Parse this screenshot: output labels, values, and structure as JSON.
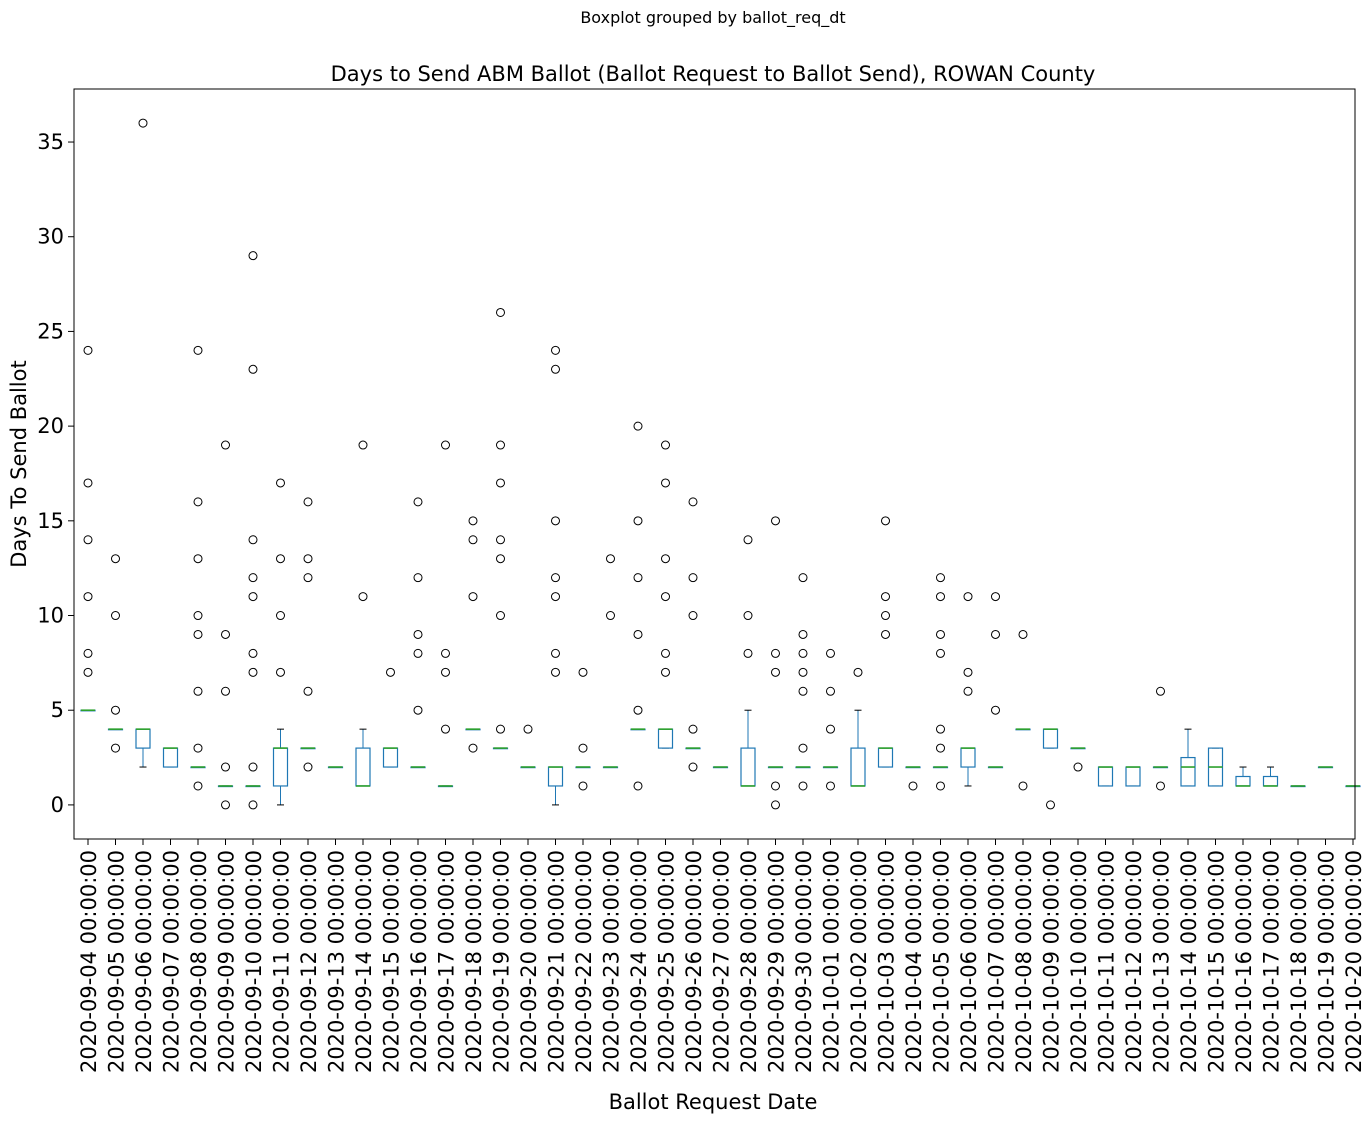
{
  "chart_data": {
    "type": "boxplot",
    "suptitle": "Boxplot grouped by ballot_req_dt",
    "title": "Days to Send ABM Ballot (Ballot Request to Ballot Send), ROWAN County",
    "xlabel": "Ballot Request Date",
    "ylabel": "Days To Send Ballot",
    "ylim": [
      -1.8,
      37.8
    ],
    "yticks": [
      0,
      5,
      10,
      15,
      20,
      25,
      30,
      35
    ],
    "grid": false,
    "colors": {
      "box": "#1f77b4",
      "median": "#2ca02c",
      "flier": "#000000",
      "axes": "#000000"
    },
    "categories": [
      "2020-09-04 00:00:00",
      "2020-09-05 00:00:00",
      "2020-09-06 00:00:00",
      "2020-09-07 00:00:00",
      "2020-09-08 00:00:00",
      "2020-09-09 00:00:00",
      "2020-09-10 00:00:00",
      "2020-09-11 00:00:00",
      "2020-09-12 00:00:00",
      "2020-09-13 00:00:00",
      "2020-09-14 00:00:00",
      "2020-09-15 00:00:00",
      "2020-09-16 00:00:00",
      "2020-09-17 00:00:00",
      "2020-09-18 00:00:00",
      "2020-09-19 00:00:00",
      "2020-09-20 00:00:00",
      "2020-09-21 00:00:00",
      "2020-09-22 00:00:00",
      "2020-09-23 00:00:00",
      "2020-09-24 00:00:00",
      "2020-09-25 00:00:00",
      "2020-09-26 00:00:00",
      "2020-09-27 00:00:00",
      "2020-09-28 00:00:00",
      "2020-09-29 00:00:00",
      "2020-09-30 00:00:00",
      "2020-10-01 00:00:00",
      "2020-10-02 00:00:00",
      "2020-10-03 00:00:00",
      "2020-10-04 00:00:00",
      "2020-10-05 00:00:00",
      "2020-10-06 00:00:00",
      "2020-10-07 00:00:00",
      "2020-10-08 00:00:00",
      "2020-10-09 00:00:00",
      "2020-10-10 00:00:00",
      "2020-10-11 00:00:00",
      "2020-10-12 00:00:00",
      "2020-10-13 00:00:00",
      "2020-10-14 00:00:00",
      "2020-10-15 00:00:00",
      "2020-10-16 00:00:00",
      "2020-10-17 00:00:00",
      "2020-10-18 00:00:00",
      "2020-10-19 00:00:00",
      "2020-10-20 00:00:00"
    ],
    "boxes": [
      {
        "whislo": 5,
        "q1": 5,
        "med": 5,
        "q3": 5,
        "whishi": 5,
        "fliers": [
          24,
          17,
          14,
          11,
          8,
          7
        ]
      },
      {
        "whislo": 4,
        "q1": 4,
        "med": 4,
        "q3": 4,
        "whishi": 4,
        "fliers": [
          13,
          10,
          5,
          3
        ]
      },
      {
        "whislo": 2,
        "q1": 3,
        "med": 4,
        "q3": 4,
        "whishi": 4,
        "fliers": [
          36
        ]
      },
      {
        "whislo": 2,
        "q1": 2,
        "med": 3,
        "q3": 3,
        "whishi": 3,
        "fliers": []
      },
      {
        "whislo": 2,
        "q1": 2,
        "med": 2,
        "q3": 2,
        "whishi": 2,
        "fliers": [
          24,
          16,
          13,
          10,
          9,
          6,
          3,
          1
        ]
      },
      {
        "whislo": 1,
        "q1": 1,
        "med": 1,
        "q3": 1,
        "whishi": 1,
        "fliers": [
          19,
          9,
          6,
          2,
          0
        ]
      },
      {
        "whislo": 1,
        "q1": 1,
        "med": 1,
        "q3": 1,
        "whishi": 1,
        "fliers": [
          29,
          23,
          14,
          12,
          11,
          8,
          7,
          2,
          0
        ]
      },
      {
        "whislo": 0,
        "q1": 1,
        "med": 3,
        "q3": 3,
        "whishi": 4,
        "fliers": [
          17,
          13,
          10,
          7
        ]
      },
      {
        "whislo": 3,
        "q1": 3,
        "med": 3,
        "q3": 3,
        "whishi": 3,
        "fliers": [
          16,
          13,
          12,
          6,
          2
        ]
      },
      {
        "whislo": 2,
        "q1": 2,
        "med": 2,
        "q3": 2,
        "whishi": 2,
        "fliers": []
      },
      {
        "whislo": 1,
        "q1": 1,
        "med": 1,
        "q3": 3,
        "whishi": 4,
        "fliers": [
          19,
          11
        ]
      },
      {
        "whislo": 2,
        "q1": 2,
        "med": 3,
        "q3": 3,
        "whishi": 3,
        "fliers": [
          7
        ]
      },
      {
        "whislo": 2,
        "q1": 2,
        "med": 2,
        "q3": 2,
        "whishi": 2,
        "fliers": [
          16,
          12,
          9,
          8,
          5
        ]
      },
      {
        "whislo": 1,
        "q1": 1,
        "med": 1,
        "q3": 1,
        "whishi": 1,
        "fliers": [
          19,
          8,
          7,
          4
        ]
      },
      {
        "whislo": 4,
        "q1": 4,
        "med": 4,
        "q3": 4,
        "whishi": 4,
        "fliers": [
          15,
          14,
          11,
          3
        ]
      },
      {
        "whislo": 3,
        "q1": 3,
        "med": 3,
        "q3": 3,
        "whishi": 3,
        "fliers": [
          26,
          19,
          17,
          14,
          13,
          10,
          4
        ]
      },
      {
        "whislo": 2,
        "q1": 2,
        "med": 2,
        "q3": 2,
        "whishi": 2,
        "fliers": [
          4
        ]
      },
      {
        "whislo": 0,
        "q1": 1,
        "med": 2,
        "q3": 2,
        "whishi": 2,
        "fliers": [
          24,
          23,
          15,
          12,
          11,
          8,
          7
        ]
      },
      {
        "whislo": 2,
        "q1": 2,
        "med": 2,
        "q3": 2,
        "whishi": 2,
        "fliers": [
          7,
          3,
          1
        ]
      },
      {
        "whislo": 2,
        "q1": 2,
        "med": 2,
        "q3": 2,
        "whishi": 2,
        "fliers": [
          13,
          10
        ]
      },
      {
        "whislo": 4,
        "q1": 4,
        "med": 4,
        "q3": 4,
        "whishi": 4,
        "fliers": [
          20,
          15,
          12,
          9,
          5,
          1
        ]
      },
      {
        "whislo": 3,
        "q1": 3,
        "med": 4,
        "q3": 4,
        "whishi": 4,
        "fliers": [
          19,
          17,
          13,
          11,
          8,
          7
        ]
      },
      {
        "whislo": 3,
        "q1": 3,
        "med": 3,
        "q3": 3,
        "whishi": 3,
        "fliers": [
          16,
          12,
          10,
          4,
          2
        ]
      },
      {
        "whislo": 2,
        "q1": 2,
        "med": 2,
        "q3": 2,
        "whishi": 2,
        "fliers": []
      },
      {
        "whislo": 1,
        "q1": 1,
        "med": 1,
        "q3": 3,
        "whishi": 5,
        "fliers": [
          14,
          10,
          8
        ]
      },
      {
        "whislo": 2,
        "q1": 2,
        "med": 2,
        "q3": 2,
        "whishi": 2,
        "fliers": [
          15,
          8,
          7,
          1,
          0
        ]
      },
      {
        "whislo": 2,
        "q1": 2,
        "med": 2,
        "q3": 2,
        "whishi": 2,
        "fliers": [
          12,
          9,
          8,
          7,
          6,
          3,
          1
        ]
      },
      {
        "whislo": 2,
        "q1": 2,
        "med": 2,
        "q3": 2,
        "whishi": 2,
        "fliers": [
          8,
          6,
          4,
          1
        ]
      },
      {
        "whislo": 1,
        "q1": 1,
        "med": 1,
        "q3": 3,
        "whishi": 5,
        "fliers": [
          7
        ]
      },
      {
        "whislo": 2,
        "q1": 2,
        "med": 3,
        "q3": 3,
        "whishi": 3,
        "fliers": [
          15,
          11,
          10,
          9
        ]
      },
      {
        "whislo": 2,
        "q1": 2,
        "med": 2,
        "q3": 2,
        "whishi": 2,
        "fliers": [
          1
        ]
      },
      {
        "whislo": 2,
        "q1": 2,
        "med": 2,
        "q3": 2,
        "whishi": 2,
        "fliers": [
          12,
          11,
          9,
          8,
          4,
          3,
          1
        ]
      },
      {
        "whislo": 1,
        "q1": 2,
        "med": 3,
        "q3": 3,
        "whishi": 3,
        "fliers": [
          11,
          7,
          6
        ]
      },
      {
        "whislo": 2,
        "q1": 2,
        "med": 2,
        "q3": 2,
        "whishi": 2,
        "fliers": [
          11,
          9,
          5
        ]
      },
      {
        "whislo": 4,
        "q1": 4,
        "med": 4,
        "q3": 4,
        "whishi": 4,
        "fliers": [
          9,
          1
        ]
      },
      {
        "whislo": 3,
        "q1": 3,
        "med": 4,
        "q3": 4,
        "whishi": 4,
        "fliers": [
          0
        ]
      },
      {
        "whislo": 3,
        "q1": 3,
        "med": 3,
        "q3": 3,
        "whishi": 3,
        "fliers": [
          2
        ]
      },
      {
        "whislo": 1,
        "q1": 1,
        "med": 2,
        "q3": 2,
        "whishi": 2,
        "fliers": []
      },
      {
        "whislo": 1,
        "q1": 1,
        "med": 2,
        "q3": 2,
        "whishi": 2,
        "fliers": []
      },
      {
        "whislo": 2,
        "q1": 2,
        "med": 2,
        "q3": 2,
        "whishi": 2,
        "fliers": [
          6,
          1
        ]
      },
      {
        "whislo": 1,
        "q1": 1,
        "med": 2,
        "q3": 2.5,
        "whishi": 4,
        "fliers": []
      },
      {
        "whislo": 1,
        "q1": 1,
        "med": 2,
        "q3": 3,
        "whishi": 3,
        "fliers": []
      },
      {
        "whislo": 1,
        "q1": 1,
        "med": 1,
        "q3": 1.5,
        "whishi": 2,
        "fliers": []
      },
      {
        "whislo": 1,
        "q1": 1,
        "med": 1,
        "q3": 1.5,
        "whishi": 2,
        "fliers": []
      },
      {
        "whislo": 1,
        "q1": 1,
        "med": 1,
        "q3": 1,
        "whishi": 1,
        "fliers": []
      },
      {
        "whislo": 2,
        "q1": 2,
        "med": 2,
        "q3": 2,
        "whishi": 2,
        "fliers": []
      },
      {
        "whislo": 1,
        "q1": 1,
        "med": 1,
        "q3": 1,
        "whishi": 1,
        "fliers": []
      }
    ]
  }
}
